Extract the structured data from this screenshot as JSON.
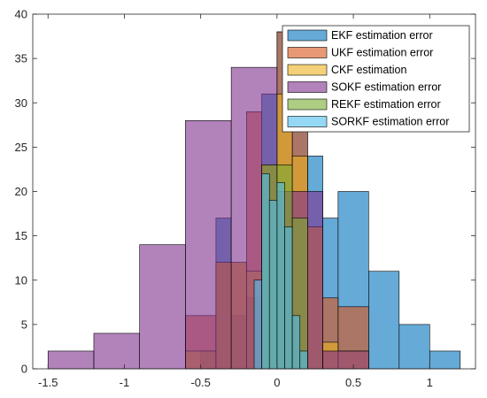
{
  "chart_data": {
    "type": "histogram",
    "title": "",
    "xlabel": "",
    "ylabel": "",
    "xlim": [
      -1.6,
      1.3
    ],
    "ylim": [
      0,
      40
    ],
    "xticks": [
      -1.5,
      -1,
      -0.5,
      0,
      0.5,
      1
    ],
    "xtick_labels": [
      "-1.5",
      "-1",
      "-0.5",
      "0",
      "0.5",
      "1"
    ],
    "yticks": [
      0,
      5,
      10,
      15,
      20,
      25,
      30,
      35,
      40
    ],
    "ytick_labels": [
      "0",
      "5",
      "10",
      "15",
      "20",
      "25",
      "30",
      "35",
      "40"
    ],
    "grid": false,
    "legend_position": "top-right",
    "series": [
      {
        "name": "EKF estimation error",
        "color": "#0072BD",
        "bins": [
          {
            "x0": -0.5,
            "x1": -0.4,
            "count": 2
          },
          {
            "x0": -0.4,
            "x1": -0.3,
            "count": 17
          },
          {
            "x0": -0.3,
            "x1": -0.2,
            "count": 6
          },
          {
            "x0": -0.2,
            "x1": -0.1,
            "count": 8
          },
          {
            "x0": -0.1,
            "x1": 0.0,
            "count": 31
          },
          {
            "x0": 0.0,
            "x1": 0.1,
            "count": 38
          },
          {
            "x0": 0.1,
            "x1": 0.2,
            "count": 30
          },
          {
            "x0": 0.2,
            "x1": 0.3,
            "count": 24
          },
          {
            "x0": 0.3,
            "x1": 0.4,
            "count": 17
          },
          {
            "x0": 0.4,
            "x1": 0.6,
            "count": 20
          },
          {
            "x0": 0.6,
            "x1": 0.8,
            "count": 11
          },
          {
            "x0": 0.8,
            "x1": 1.0,
            "count": 5
          },
          {
            "x0": 1.0,
            "x1": 1.2,
            "count": 2
          }
        ]
      },
      {
        "name": "UKF estimation error",
        "color": "#D95319",
        "bins": [
          {
            "x0": -0.6,
            "x1": -0.4,
            "count": 6
          },
          {
            "x0": -0.4,
            "x1": -0.2,
            "count": 12
          },
          {
            "x0": -0.2,
            "x1": -0.1,
            "count": 29
          },
          {
            "x0": -0.1,
            "x1": 0.0,
            "count": 23
          },
          {
            "x0": 0.0,
            "x1": 0.1,
            "count": 38
          },
          {
            "x0": 0.1,
            "x1": 0.2,
            "count": 34
          },
          {
            "x0": 0.2,
            "x1": 0.3,
            "count": 16
          },
          {
            "x0": 0.3,
            "x1": 0.4,
            "count": 8
          },
          {
            "x0": 0.4,
            "x1": 0.6,
            "count": 7
          }
        ]
      },
      {
        "name": "CKF estimation",
        "color": "#EDB120",
        "bins": [
          {
            "x0": -0.6,
            "x1": -0.4,
            "count": 2
          },
          {
            "x0": -0.4,
            "x1": -0.2,
            "count": 12
          },
          {
            "x0": -0.2,
            "x1": -0.1,
            "count": 11
          },
          {
            "x0": -0.1,
            "x1": 0.0,
            "count": 23
          },
          {
            "x0": 0.0,
            "x1": 0.1,
            "count": 31
          },
          {
            "x0": 0.1,
            "x1": 0.2,
            "count": 24
          },
          {
            "x0": 0.2,
            "x1": 0.3,
            "count": 16
          },
          {
            "x0": 0.3,
            "x1": 0.4,
            "count": 3
          },
          {
            "x0": 0.4,
            "x1": 0.6,
            "count": 2
          }
        ]
      },
      {
        "name": "SOKF estimation error",
        "color": "#7E2F8E",
        "bins": [
          {
            "x0": -1.5,
            "x1": -1.2,
            "count": 2
          },
          {
            "x0": -1.2,
            "x1": -0.9,
            "count": 4
          },
          {
            "x0": -0.9,
            "x1": -0.6,
            "count": 14
          },
          {
            "x0": -0.6,
            "x1": -0.3,
            "count": 28
          },
          {
            "x0": -0.3,
            "x1": 0.0,
            "count": 34
          },
          {
            "x0": 0.0,
            "x1": 0.3,
            "count": 20
          },
          {
            "x0": 0.3,
            "x1": 0.6,
            "count": 2
          }
        ]
      },
      {
        "name": "REKF estimation error",
        "color": "#77AC30",
        "bins": [
          {
            "x0": -0.1,
            "x1": 0.0,
            "count": 23
          },
          {
            "x0": 0.0,
            "x1": 0.1,
            "count": 23
          },
          {
            "x0": 0.1,
            "x1": 0.2,
            "count": 17
          }
        ]
      },
      {
        "name": "SORKF estimation error",
        "color": "#4DBEEE",
        "bins": [
          {
            "x0": -0.15,
            "x1": -0.1,
            "count": 10
          },
          {
            "x0": -0.1,
            "x1": -0.05,
            "count": 22
          },
          {
            "x0": -0.05,
            "x1": 0.0,
            "count": 19
          },
          {
            "x0": 0.0,
            "x1": 0.05,
            "count": 21
          },
          {
            "x0": 0.05,
            "x1": 0.1,
            "count": 16
          },
          {
            "x0": 0.1,
            "x1": 0.15,
            "count": 6
          },
          {
            "x0": 0.15,
            "x1": 0.2,
            "count": 2
          }
        ]
      }
    ]
  }
}
